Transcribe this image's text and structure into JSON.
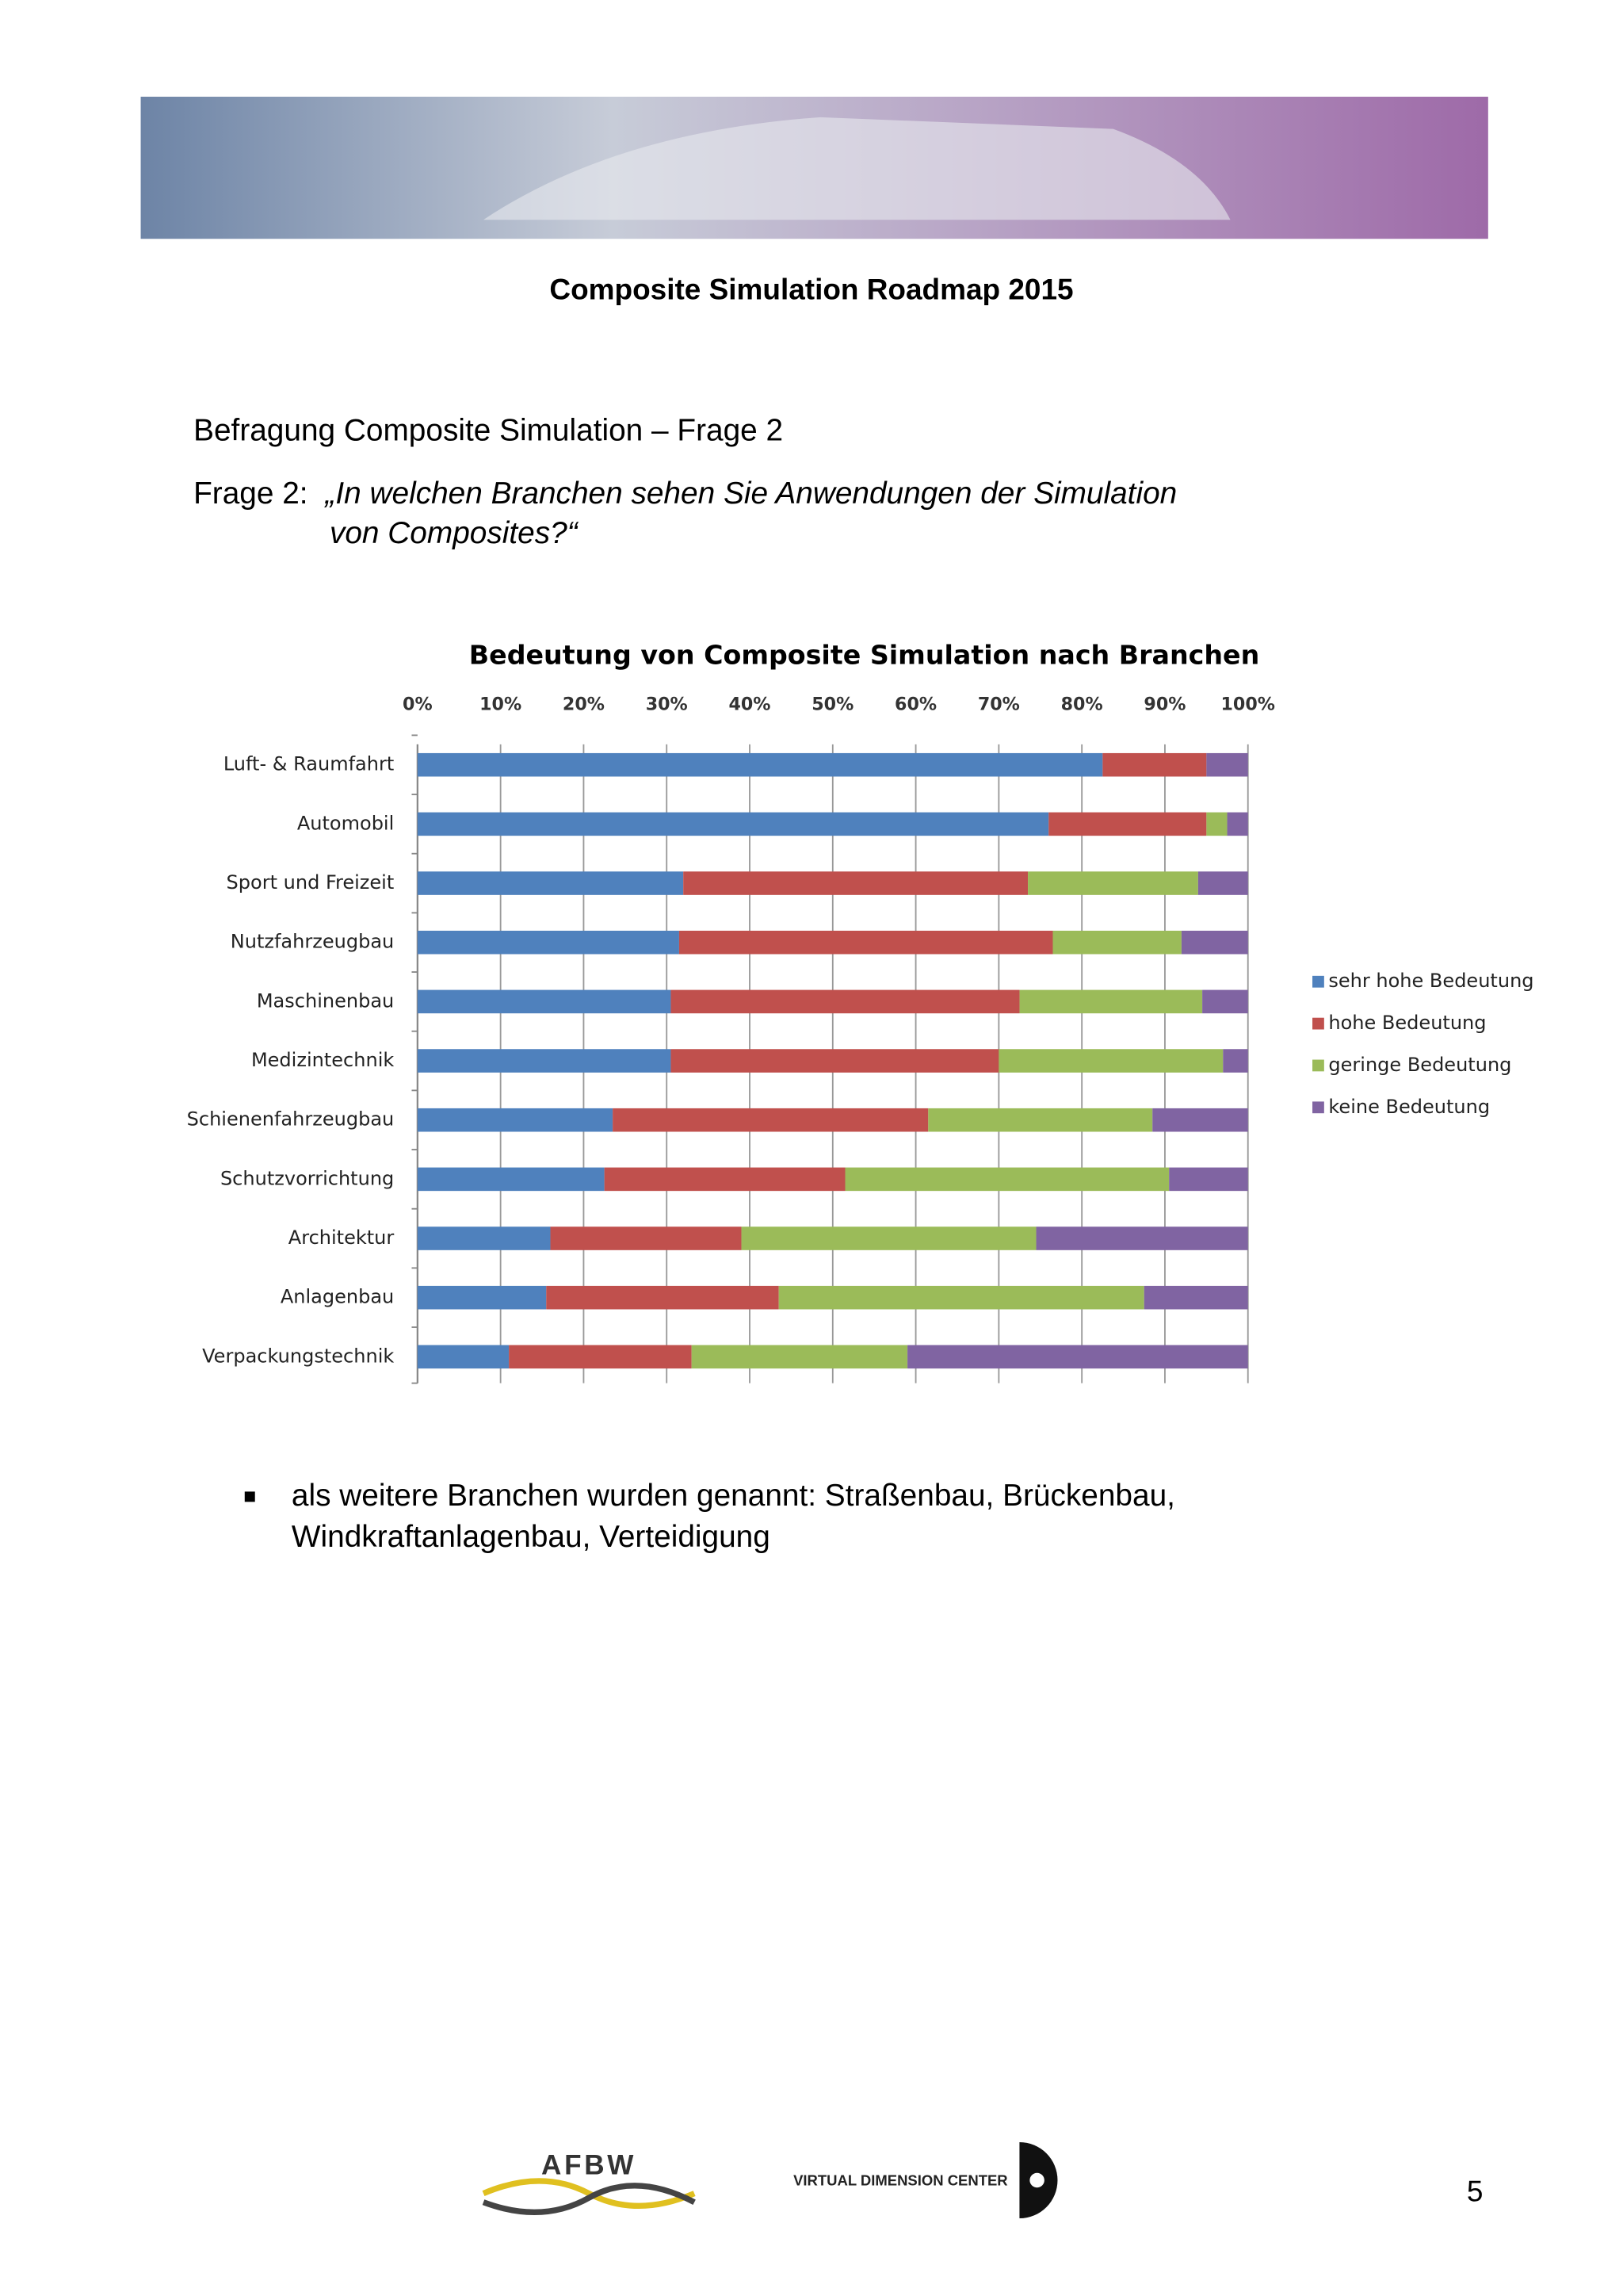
{
  "header": {
    "title": "Composite Simulation Roadmap  2015"
  },
  "heading": "Befragung Composite Simulation – Frage 2",
  "question": {
    "prefix": "Frage 2:",
    "lines": [
      "„In welchen Branchen sehen Sie Anwendungen der Simulation",
      "von Composites?“"
    ]
  },
  "chart_data": {
    "type": "bar",
    "orientation": "horizontal",
    "stacked": true,
    "title": "Bedeutung von Composite Simulation nach Branchen",
    "categories": [
      "Luft- & Raumfahrt",
      "Automobil",
      "Sport und Freizeit",
      "Nutzfahrzeugbau",
      "Maschinenbau",
      "Medizintechnik",
      "Schienenfahrzeugbau",
      "Schutzvorrichtung",
      "Architektur",
      "Anlagenbau",
      "Verpackungstechnik"
    ],
    "series": [
      {
        "name": "sehr hohe Bedeutung",
        "color": "#4f81bd",
        "values": [
          82.5,
          76,
          32,
          31.5,
          30.5,
          30.5,
          23.5,
          22.5,
          16,
          15.5,
          11
        ]
      },
      {
        "name": "hohe Bedeutung",
        "color": "#c0504d",
        "values": [
          12.5,
          19,
          41.5,
          45,
          42,
          39.5,
          38,
          29,
          23,
          28,
          22
        ]
      },
      {
        "name": "geringe Bedeutung",
        "color": "#9bbb59",
        "values": [
          0,
          2.5,
          20.5,
          15.5,
          22,
          27,
          27,
          39,
          35.5,
          44,
          26
        ]
      },
      {
        "name": "keine Bedeutung",
        "color": "#8064a2",
        "values": [
          5,
          2.5,
          6,
          8,
          5.5,
          3,
          11.5,
          9.5,
          25.5,
          12.5,
          41
        ]
      }
    ],
    "xlim": [
      0,
      100
    ],
    "xticks": [
      {
        "value": 0,
        "label": "0%"
      },
      {
        "value": 10,
        "label": "10%"
      },
      {
        "value": 20,
        "label": "20%"
      },
      {
        "value": 30,
        "label": "30%"
      },
      {
        "value": 40,
        "label": "40%"
      },
      {
        "value": 50,
        "label": "50%"
      },
      {
        "value": 60,
        "label": "60%"
      },
      {
        "value": 70,
        "label": "70%"
      },
      {
        "value": 80,
        "label": "80%"
      },
      {
        "value": 90,
        "label": "90%"
      },
      {
        "value": 100,
        "label": "100%"
      }
    ],
    "grid": true,
    "legend": "right"
  },
  "bullets": [
    [
      "als weitere Branchen wurden genannt:  Straßenbau, Brückenbau,",
      "Windkraftanlagenbau, Verteidigung"
    ]
  ],
  "footer": {
    "logo_left": "AFBW",
    "logo_right": "VIRTUAL DIMENSION CENTER",
    "page": "5"
  }
}
